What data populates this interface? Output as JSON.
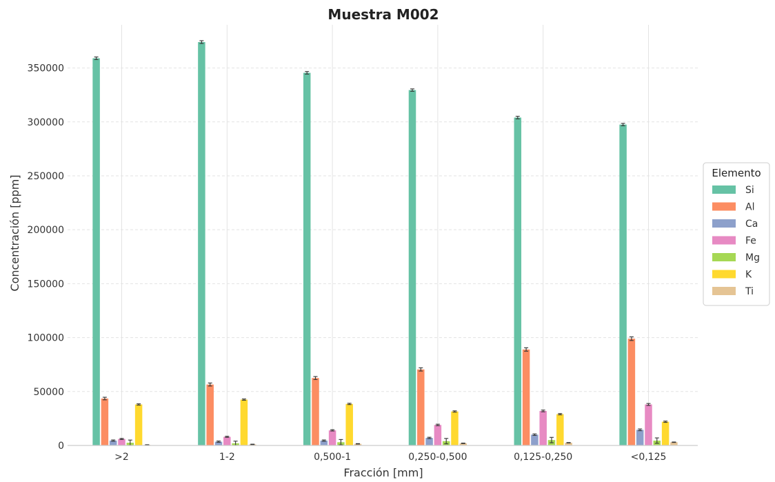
{
  "chart_data": {
    "type": "bar",
    "title": "Muestra M002",
    "xlabel": "Fracción [mm]",
    "ylabel": "Concentración [ppm]",
    "categories": [
      ">2",
      "1-2",
      "0,500-1",
      "0,250-0,500",
      "0,125-0,250",
      "<0,125"
    ],
    "ylim": [
      0,
      390000
    ],
    "yticks": [
      0,
      50000,
      100000,
      150000,
      200000,
      250000,
      300000,
      350000
    ],
    "ytick_labels": [
      "0",
      "50000",
      "100000",
      "150000",
      "200000",
      "250000",
      "300000",
      "350000"
    ],
    "grid": true,
    "error_bars": true,
    "legend": {
      "title": "Elemento",
      "placement": "right"
    },
    "series": [
      {
        "name": "Si",
        "color": "#66c2a5",
        "values": [
          359000,
          374000,
          345500,
          329500,
          304000,
          297500
        ],
        "errors": [
          1200,
          1300,
          1200,
          1100,
          1200,
          1100
        ]
      },
      {
        "name": "Al",
        "color": "#fc8d62",
        "values": [
          43500,
          56500,
          62500,
          70500,
          89000,
          99000
        ],
        "errors": [
          1200,
          1400,
          1400,
          1500,
          1600,
          1700
        ]
      },
      {
        "name": "Ca",
        "color": "#8da0cb",
        "values": [
          4500,
          3500,
          4500,
          7000,
          10000,
          14500
        ],
        "errors": [
          600,
          600,
          600,
          600,
          700,
          800
        ]
      },
      {
        "name": "Fe",
        "color": "#e78ac3",
        "values": [
          6000,
          8000,
          14000,
          19000,
          32000,
          38000
        ],
        "errors": [
          500,
          500,
          600,
          700,
          800,
          900
        ]
      },
      {
        "name": "Mg",
        "color": "#a6d854",
        "values": [
          2500,
          2000,
          3000,
          4000,
          5000,
          4500
        ],
        "errors": [
          2500,
          2000,
          2500,
          2500,
          2500,
          2500
        ]
      },
      {
        "name": "K",
        "color": "#ffd92f",
        "values": [
          38000,
          42500,
          38500,
          31500,
          29000,
          22000
        ],
        "errors": [
          600,
          600,
          600,
          600,
          600,
          600
        ]
      },
      {
        "name": "Ti",
        "color": "#e5c494",
        "values": [
          500,
          1000,
          1500,
          2000,
          2500,
          3000
        ],
        "errors": [
          200,
          200,
          200,
          200,
          200,
          200
        ]
      }
    ]
  }
}
